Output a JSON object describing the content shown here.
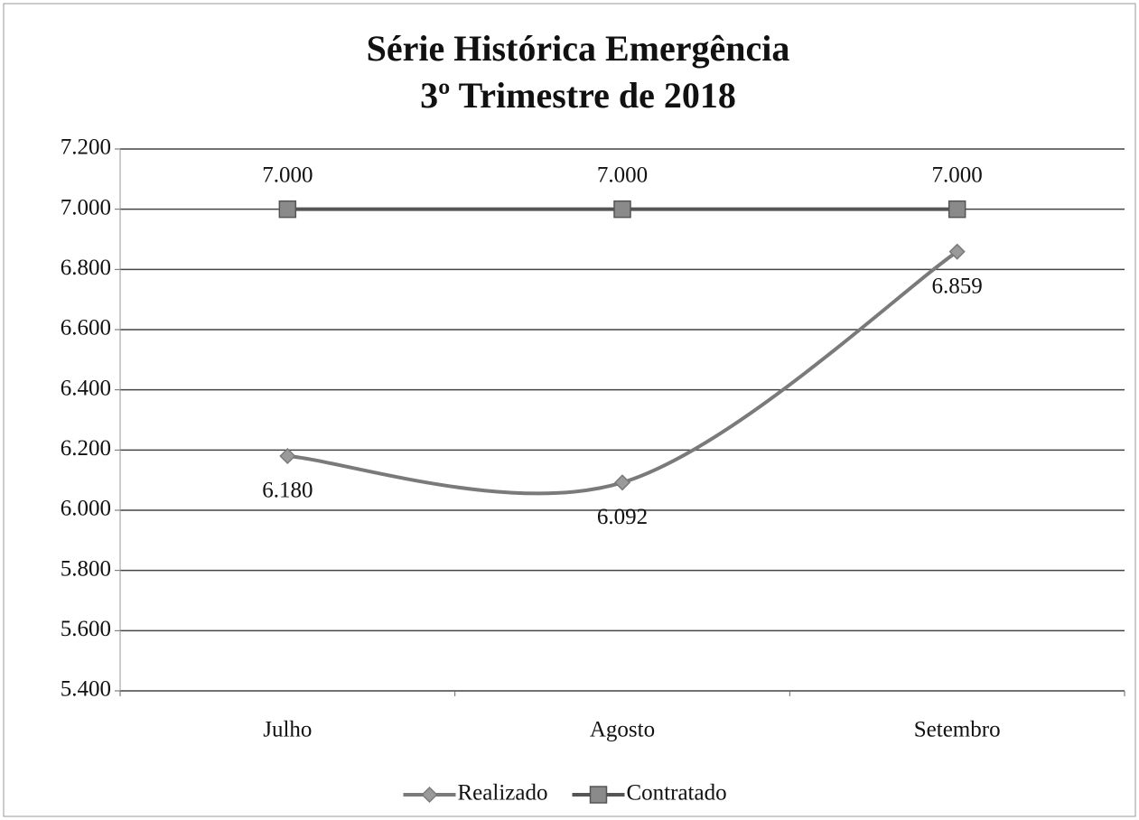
{
  "chart_data": {
    "type": "line",
    "title": "Série Histórica Emergência",
    "subtitle": "3º Trimestre de 2018",
    "categories": [
      "Julho",
      "Agosto",
      "Setembro"
    ],
    "series": [
      {
        "name": "Realizado",
        "color": "#7a7a7a",
        "marker": "diamond",
        "smooth": true,
        "label_position": "below",
        "values": [
          6180,
          6092,
          6859
        ],
        "value_labels": [
          "6.180",
          "6.092",
          "6.859"
        ]
      },
      {
        "name": "Contratado",
        "color": "#555555",
        "marker": "square",
        "smooth": false,
        "label_position": "above",
        "values": [
          7000,
          7000,
          7000
        ],
        "value_labels": [
          "7.000",
          "7.000",
          "7.000"
        ]
      }
    ],
    "ylim": [
      5400,
      7200
    ],
    "yticks": [
      {
        "value": 5400,
        "label": "5.400"
      },
      {
        "value": 5600,
        "label": "5.600"
      },
      {
        "value": 5800,
        "label": "5.800"
      },
      {
        "value": 6000,
        "label": "6.000"
      },
      {
        "value": 6200,
        "label": "6.200"
      },
      {
        "value": 6400,
        "label": "6.400"
      },
      {
        "value": 6600,
        "label": "6.600"
      },
      {
        "value": 6800,
        "label": "6.800"
      },
      {
        "value": 7000,
        "label": "7.000"
      },
      {
        "value": 7200,
        "label": "7.200"
      }
    ],
    "grid": true,
    "legend": "bottom"
  }
}
